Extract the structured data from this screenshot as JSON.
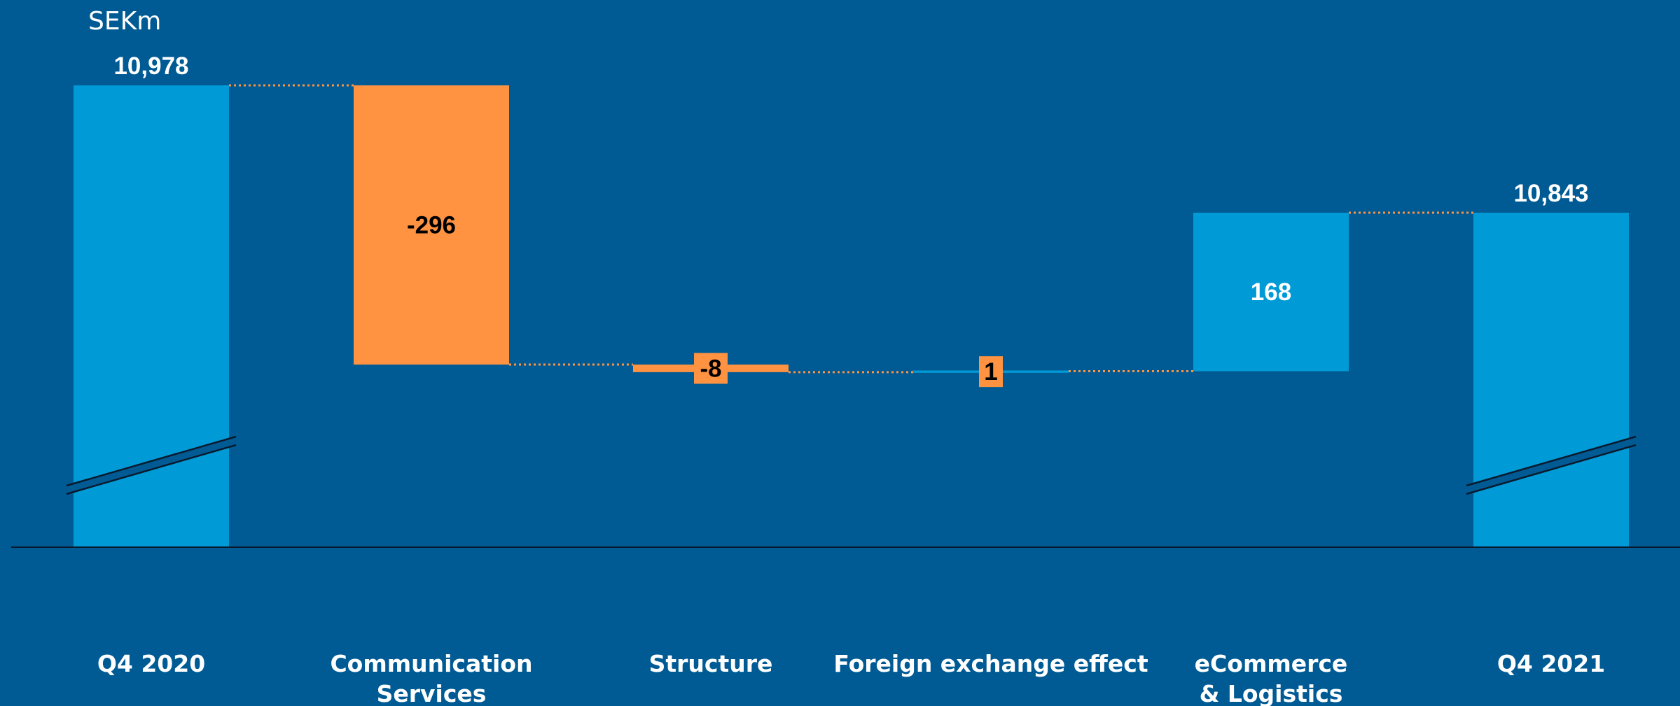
{
  "chart_data": {
    "type": "bar",
    "subtype": "waterfall",
    "unit_label": "SEKm",
    "categories": [
      {
        "label_lines": [
          "Q4 2020"
        ],
        "kind": "total",
        "value": 10978,
        "value_label": "10,978"
      },
      {
        "label_lines": [
          "Communication",
          "Services"
        ],
        "kind": "delta",
        "value": -296,
        "value_label": "-296"
      },
      {
        "label_lines": [
          "Structure"
        ],
        "kind": "delta",
        "value": -8,
        "value_label": "-8"
      },
      {
        "label_lines": [
          "Foreign exchange effect"
        ],
        "kind": "delta",
        "value": 1,
        "value_label": "1"
      },
      {
        "label_lines": [
          "eCommerce",
          "& Logistics"
        ],
        "kind": "delta",
        "value": 168,
        "value_label": "168"
      },
      {
        "label_lines": [
          "Q4 2021"
        ],
        "kind": "total",
        "value": 10843,
        "value_label": "10,843"
      }
    ],
    "y_axis_break": true,
    "grid": false,
    "legend": "none",
    "colors": {
      "background": "#005B94",
      "total": "#009AD6",
      "increase": "#009AD6",
      "decrease": "#FF9342",
      "connector": "#FF9342",
      "axis": "#0A1A2E",
      "text_light": "#FFFFFF",
      "text_dark": "#000000"
    }
  }
}
